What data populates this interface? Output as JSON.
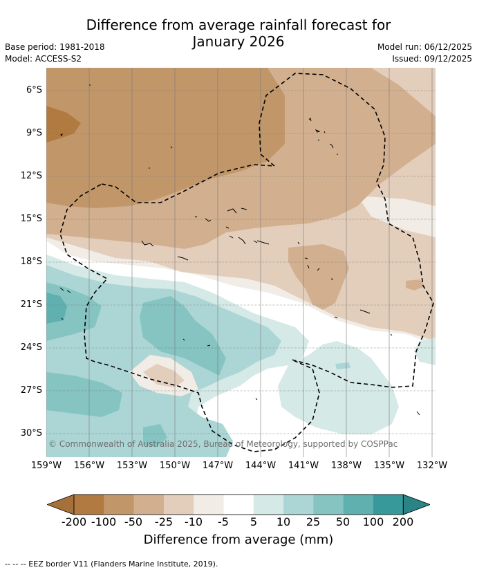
{
  "title_line1": "Difference from average rainfall forecast for",
  "title_line2": "January 2026",
  "meta_left": [
    "Base period: 1981-2018",
    "Model: ACCESS-S2"
  ],
  "meta_right": [
    "Model run: 06/12/2025",
    "Issued: 09/12/2025"
  ],
  "latitude_labels": [
    "6°S",
    "9°S",
    "12°S",
    "15°S",
    "18°S",
    "21°S",
    "24°S",
    "27°S",
    "30°S"
  ],
  "longitude_labels": [
    "159°W",
    "156°W",
    "153°W",
    "150°W",
    "147°W",
    "144°W",
    "141°W",
    "138°W",
    "135°W",
    "132°W"
  ],
  "copyright": "© Commonwealth of Australia 2025, Bureau of Meteorology, supported by COSPPac",
  "colorbar": {
    "title": "Difference from average (mm)",
    "labels": [
      "-200",
      "-100",
      "-50",
      "-25",
      "-10",
      "-5",
      "5",
      "10",
      "25",
      "50",
      "100",
      "200"
    ],
    "colors": [
      "#a6703a",
      "#b07a41",
      "#c1976a",
      "#d2b08f",
      "#e3cebc",
      "#f1ece5",
      "#ffffff",
      "#d5e9e7",
      "#acd6d5",
      "#85c4c1",
      "#5fb0ae",
      "#37999a",
      "#2a8485"
    ]
  },
  "footer": "-- -- -- EEZ border V11 (Flanders Marine Institute, 2019)."
}
